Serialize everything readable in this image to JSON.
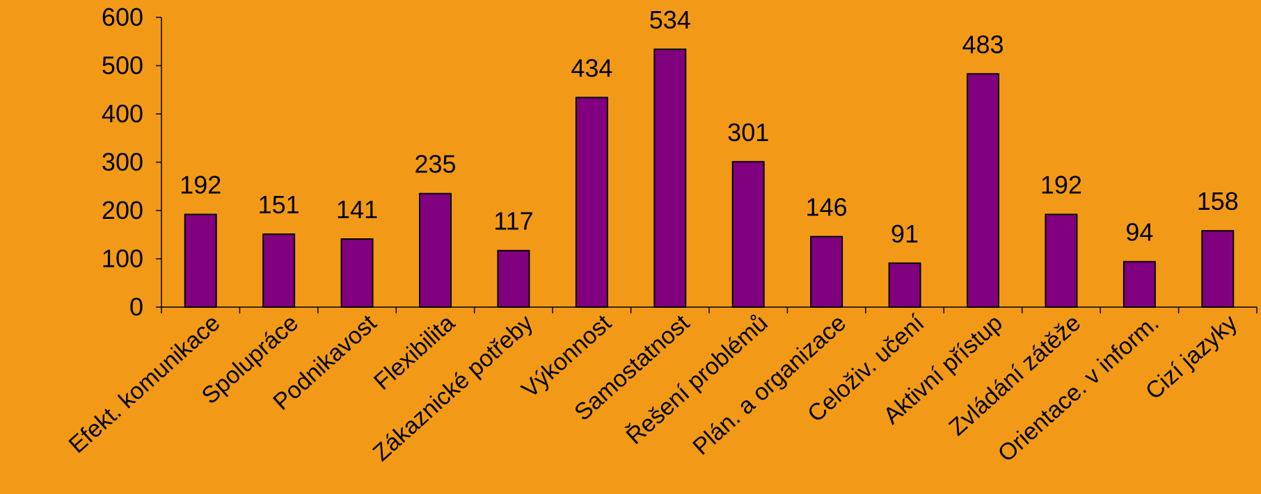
{
  "chart_data": {
    "type": "bar",
    "categories": [
      "Efekt. komunikace",
      "Spolupráce",
      "Podnikavost",
      "Flexibilita",
      "Zákaznické potřeby",
      "Výkonnost",
      "Samostatnost",
      "Řešení problémů",
      "Plán. a organizace",
      "Celoživ. učení",
      "Aktivní přístup",
      "Zvládání zátěže",
      "Orientace. v inform.",
      "Cizí jazyky"
    ],
    "values": [
      192,
      151,
      141,
      235,
      117,
      434,
      534,
      301,
      146,
      91,
      483,
      192,
      94,
      158
    ],
    "ylim": [
      0,
      600
    ],
    "yticks": [
      0,
      100,
      200,
      300,
      400,
      500,
      600
    ],
    "grid": false,
    "legend": "none",
    "colors": {
      "background": "#F29A17",
      "bar": "#800080",
      "bar_outline": "#000000",
      "text": "#000000"
    }
  }
}
